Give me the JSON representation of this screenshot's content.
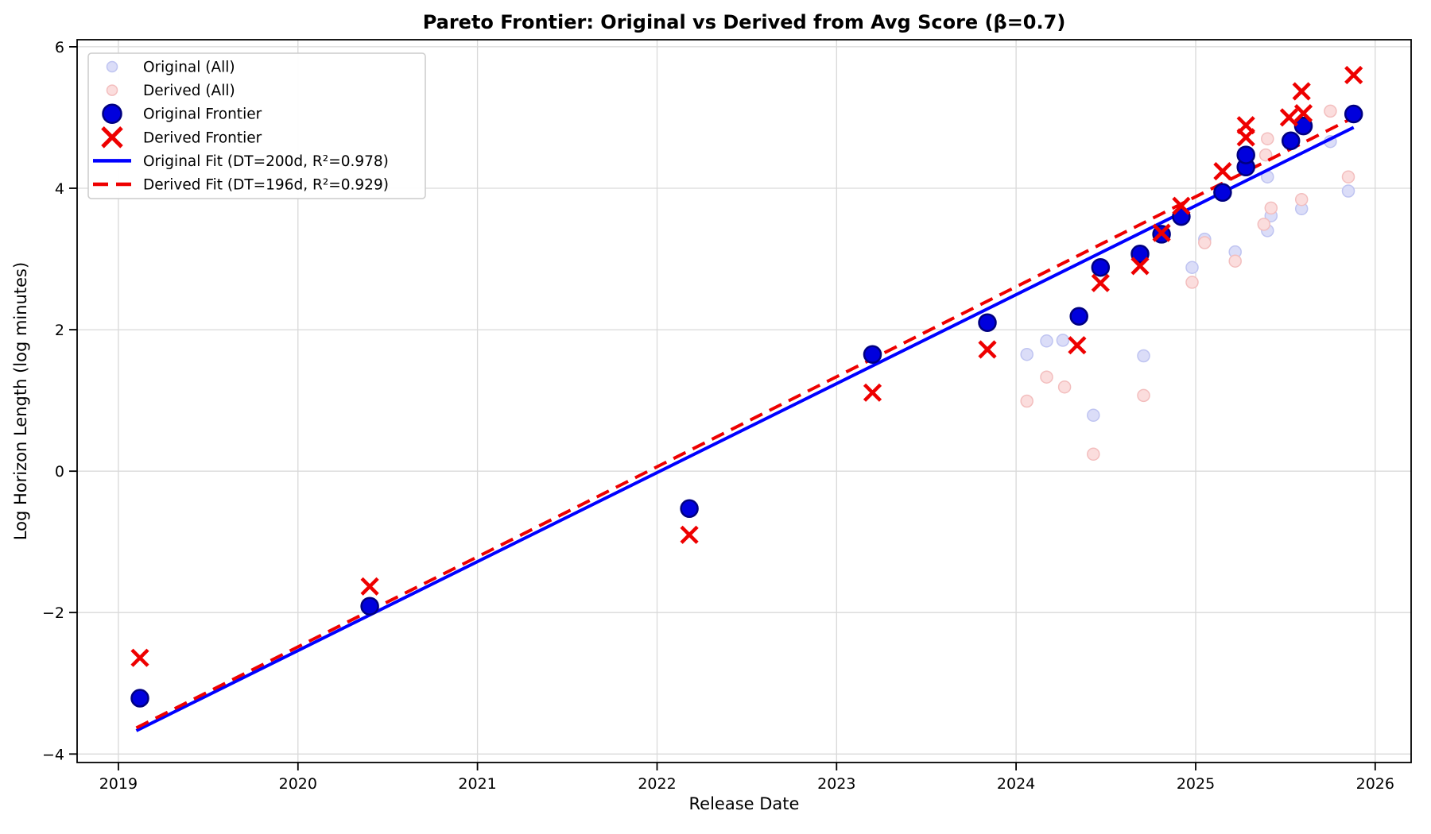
{
  "figure": {
    "title": "Pareto Frontier: Original vs Derived from Avg Score (β=0.7)",
    "xlabel": "Release Date",
    "ylabel": "Log Horizon Length (log minutes)"
  },
  "chart_data": {
    "type": "scatter",
    "title": "Pareto Frontier: Original vs Derived from Avg Score (β=0.7)",
    "xlabel": "Release Date",
    "ylabel": "Log Horizon Length (log minutes)",
    "xlim": [
      2018.77,
      2026.2
    ],
    "ylim": [
      -4.12,
      6.1
    ],
    "xticks": [
      2019,
      2020,
      2021,
      2022,
      2023,
      2024,
      2025,
      2026
    ],
    "xticklabels": [
      "2019",
      "2020",
      "2021",
      "2022",
      "2023",
      "2024",
      "2025",
      "2026"
    ],
    "yticks": [
      -4,
      -2,
      0,
      2,
      4,
      6
    ],
    "yticklabels": [
      "−4",
      "−2",
      "0",
      "2",
      "4",
      "6"
    ],
    "grid": true,
    "series": [
      {
        "id": "original_all",
        "name": "Original (All)",
        "marker": "circle",
        "fill": "#dbddf8",
        "edge": "#bfc4f1",
        "radius": 7.5,
        "points": [
          [
            2024.06,
            1.65
          ],
          [
            2024.17,
            1.84
          ],
          [
            2024.26,
            1.85
          ],
          [
            2024.43,
            0.79
          ],
          [
            2024.71,
            1.63
          ],
          [
            2024.98,
            2.88
          ],
          [
            2025.05,
            3.28
          ],
          [
            2025.22,
            3.1
          ],
          [
            2025.4,
            3.4
          ],
          [
            2025.42,
            3.61
          ],
          [
            2025.4,
            4.16
          ],
          [
            2025.59,
            3.71
          ],
          [
            2025.75,
            4.66
          ],
          [
            2025.85,
            3.96
          ]
        ]
      },
      {
        "id": "derived_all",
        "name": "Derived (All)",
        "marker": "circle",
        "fill": "#fbdddd",
        "edge": "#f3bebe",
        "radius": 7.5,
        "points": [
          [
            2024.06,
            0.99
          ],
          [
            2024.17,
            1.33
          ],
          [
            2024.27,
            1.19
          ],
          [
            2024.43,
            0.24
          ],
          [
            2024.71,
            1.07
          ],
          [
            2024.98,
            2.67
          ],
          [
            2025.05,
            3.23
          ],
          [
            2025.22,
            2.97
          ],
          [
            2025.38,
            3.49
          ],
          [
            2025.42,
            3.72
          ],
          [
            2025.39,
            4.47
          ],
          [
            2025.4,
            4.7
          ],
          [
            2025.59,
            3.84
          ],
          [
            2025.75,
            5.09
          ],
          [
            2025.85,
            4.16
          ]
        ]
      },
      {
        "id": "original_frontier",
        "name": "Original Frontier",
        "marker": "circle",
        "fill": "#0000dd",
        "edge": "#000080",
        "radius": 10.5,
        "edge_width": 2.5,
        "points": [
          [
            2019.12,
            -3.21
          ],
          [
            2020.4,
            -1.91
          ],
          [
            2022.18,
            -0.53
          ],
          [
            2023.2,
            1.65
          ],
          [
            2023.84,
            2.1
          ],
          [
            2024.35,
            2.19
          ],
          [
            2024.47,
            2.88
          ],
          [
            2024.69,
            3.07
          ],
          [
            2024.81,
            3.35
          ],
          [
            2024.92,
            3.6
          ],
          [
            2025.15,
            3.94
          ],
          [
            2025.28,
            4.3
          ],
          [
            2025.28,
            4.47
          ],
          [
            2025.53,
            4.67
          ],
          [
            2025.6,
            4.88
          ],
          [
            2025.88,
            5.05
          ]
        ]
      },
      {
        "id": "derived_frontier",
        "name": "Derived Frontier",
        "marker": "x",
        "color": "#ee0000",
        "half": 10,
        "stroke": 4.5,
        "points": [
          [
            2019.12,
            -2.64
          ],
          [
            2020.4,
            -1.63
          ],
          [
            2022.18,
            -0.9
          ],
          [
            2023.2,
            1.11
          ],
          [
            2023.84,
            1.72
          ],
          [
            2024.34,
            1.78
          ],
          [
            2024.47,
            2.66
          ],
          [
            2024.69,
            2.9
          ],
          [
            2024.81,
            3.37
          ],
          [
            2024.92,
            3.75
          ],
          [
            2025.15,
            4.24
          ],
          [
            2025.28,
            4.72
          ],
          [
            2025.28,
            4.89
          ],
          [
            2025.52,
            5.0
          ],
          [
            2025.6,
            5.06
          ],
          [
            2025.59,
            5.37
          ],
          [
            2025.88,
            5.6
          ]
        ]
      }
    ],
    "fits": [
      {
        "id": "original_fit",
        "name": "Original Fit (DT=200d, R²=0.978)",
        "color": "#0000ff",
        "width": 4,
        "dash": null,
        "from": [
          2019.1,
          -3.67
        ],
        "to": [
          2025.88,
          4.86
        ]
      },
      {
        "id": "derived_fit",
        "name": "Derived Fit (DT=196d, R²=0.929)",
        "color": "#ee0000",
        "width": 4,
        "dash": "17 10",
        "from": [
          2019.1,
          -3.63
        ],
        "to": [
          2025.88,
          5.0
        ]
      }
    ],
    "legend": {
      "position": "upper-left",
      "entries": [
        {
          "label": "Original (All)",
          "marker": "faded-dot",
          "fill": "#dbddf8",
          "edge": "#bfc4f1"
        },
        {
          "label": "Derived (All)",
          "marker": "faded-dot",
          "fill": "#fbdddd",
          "edge": "#f3bebe"
        },
        {
          "label": "Original Frontier",
          "marker": "circle",
          "fill": "#0000dd",
          "edge": "#000080"
        },
        {
          "label": "Derived Frontier",
          "marker": "x",
          "color": "#ee0000"
        },
        {
          "label": "Original Fit (DT=200d, R²=0.978)",
          "marker": "line",
          "color": "#0000ff"
        },
        {
          "label": "Derived Fit (DT=196d, R²=0.929)",
          "marker": "dashed-line",
          "color": "#ee0000"
        }
      ]
    }
  }
}
